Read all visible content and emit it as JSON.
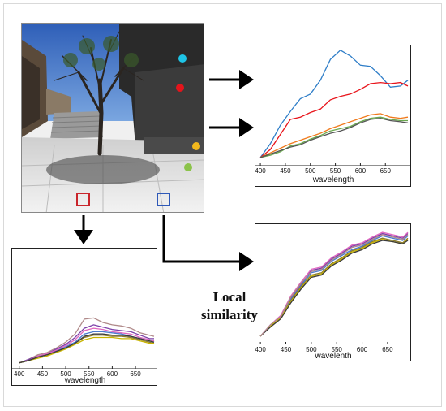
{
  "caption": {
    "line1": "Local",
    "line2": "similarity"
  },
  "colors": {
    "blue": "#2f7ec8",
    "red": "#e8141b",
    "orange": "#f07a1c",
    "green": "#6aa84f",
    "gray": "#555555",
    "marker_cyan": "#1ec4e6",
    "marker_red": "#e5141b",
    "marker_yellow": "#f2b81d",
    "marker_green": "#8bc34a",
    "square_red": "#c9252b",
    "square_blue": "#2f59b8"
  },
  "photo": {
    "markers": [
      "cyan-dot",
      "red-dot",
      "yellow-dot",
      "green-dot"
    ],
    "squares": [
      "red-square",
      "blue-square"
    ]
  },
  "chart_data": [
    {
      "id": "top-right",
      "type": "line",
      "xlabel": "wavelength",
      "ticks": [
        "400",
        "450",
        "500",
        "550",
        "600",
        "650"
      ],
      "xlim": [
        395,
        695
      ],
      "ylim": [
        0,
        1
      ],
      "x": [
        400,
        420,
        440,
        460,
        480,
        500,
        520,
        540,
        560,
        580,
        600,
        620,
        640,
        660,
        680,
        695
      ],
      "series": [
        {
          "color": "blue",
          "values": [
            0.05,
            0.17,
            0.33,
            0.45,
            0.56,
            0.6,
            0.72,
            0.9,
            0.98,
            0.93,
            0.85,
            0.84,
            0.76,
            0.66,
            0.67,
            0.72
          ]
        },
        {
          "color": "red",
          "values": [
            0.05,
            0.12,
            0.25,
            0.38,
            0.4,
            0.44,
            0.47,
            0.55,
            0.58,
            0.6,
            0.64,
            0.69,
            0.7,
            0.69,
            0.7,
            0.67
          ]
        },
        {
          "color": "orange",
          "values": [
            0.05,
            0.09,
            0.13,
            0.17,
            0.2,
            0.23,
            0.26,
            0.3,
            0.33,
            0.36,
            0.39,
            0.42,
            0.43,
            0.4,
            0.39,
            0.4
          ]
        },
        {
          "color": "green",
          "values": [
            0.05,
            0.07,
            0.1,
            0.15,
            0.17,
            0.21,
            0.24,
            0.28,
            0.3,
            0.32,
            0.36,
            0.39,
            0.4,
            0.38,
            0.37,
            0.37
          ]
        },
        {
          "color": "gray",
          "values": [
            0.05,
            0.08,
            0.11,
            0.14,
            0.16,
            0.2,
            0.23,
            0.26,
            0.28,
            0.31,
            0.35,
            0.38,
            0.39,
            0.37,
            0.36,
            0.35
          ]
        }
      ]
    },
    {
      "id": "bottom-left",
      "type": "line",
      "xlabel": "wavelength",
      "ticks": [
        "400",
        "450",
        "500",
        "550",
        "600",
        "650"
      ],
      "xlim": [
        390,
        690
      ],
      "ylim": [
        0,
        1
      ],
      "x": [
        400,
        420,
        440,
        460,
        480,
        500,
        520,
        540,
        560,
        580,
        600,
        620,
        640,
        660,
        680,
        690
      ],
      "series": [
        {
          "color": "#b08a8a",
          "values": [
            0.03,
            0.06,
            0.1,
            0.12,
            0.16,
            0.21,
            0.28,
            0.41,
            0.42,
            0.38,
            0.36,
            0.35,
            0.33,
            0.29,
            0.27,
            0.26
          ]
        },
        {
          "color": "#7b3fa8",
          "values": [
            0.03,
            0.06,
            0.09,
            0.11,
            0.15,
            0.19,
            0.25,
            0.33,
            0.36,
            0.34,
            0.32,
            0.31,
            0.3,
            0.27,
            0.24,
            0.24
          ]
        },
        {
          "color": "#e066c0",
          "values": [
            0.03,
            0.05,
            0.09,
            0.11,
            0.14,
            0.18,
            0.23,
            0.31,
            0.33,
            0.32,
            0.3,
            0.29,
            0.28,
            0.25,
            0.23,
            0.22
          ]
        },
        {
          "color": "#4a7bd0",
          "values": [
            0.03,
            0.05,
            0.08,
            0.1,
            0.13,
            0.17,
            0.21,
            0.28,
            0.3,
            0.3,
            0.29,
            0.28,
            0.26,
            0.24,
            0.22,
            0.21
          ]
        },
        {
          "color": "#8b7b2a",
          "values": [
            0.03,
            0.05,
            0.08,
            0.1,
            0.12,
            0.16,
            0.2,
            0.25,
            0.27,
            0.27,
            0.26,
            0.26,
            0.25,
            0.23,
            0.21,
            0.2
          ]
        },
        {
          "color": "#c8b400",
          "values": [
            0.03,
            0.05,
            0.07,
            0.09,
            0.12,
            0.15,
            0.19,
            0.23,
            0.25,
            0.25,
            0.25,
            0.24,
            0.24,
            0.22,
            0.2,
            0.2
          ]
        },
        {
          "color": "#3a3a3a",
          "values": [
            0.03,
            0.05,
            0.08,
            0.1,
            0.13,
            0.16,
            0.2,
            0.26,
            0.28,
            0.28,
            0.27,
            0.27,
            0.26,
            0.24,
            0.22,
            0.21
          ]
        }
      ]
    },
    {
      "id": "bottom-right",
      "type": "line",
      "xlabel": "wavelenth",
      "ticks": [
        "400",
        "450",
        "500",
        "550",
        "600",
        "650"
      ],
      "xlim": [
        395,
        690
      ],
      "ylim": [
        0,
        1
      ],
      "x": [
        400,
        420,
        440,
        460,
        480,
        500,
        520,
        540,
        560,
        580,
        600,
        620,
        640,
        660,
        680,
        690
      ],
      "series": [
        {
          "color": "#7b3fa8",
          "values": [
            0.05,
            0.15,
            0.22,
            0.38,
            0.5,
            0.62,
            0.64,
            0.72,
            0.77,
            0.83,
            0.85,
            0.9,
            0.94,
            0.92,
            0.9,
            0.94
          ]
        },
        {
          "color": "#e066c0",
          "values": [
            0.05,
            0.15,
            0.23,
            0.4,
            0.52,
            0.63,
            0.65,
            0.73,
            0.78,
            0.84,
            0.86,
            0.91,
            0.95,
            0.93,
            0.91,
            0.95
          ]
        },
        {
          "color": "#4a7bd0",
          "values": [
            0.05,
            0.14,
            0.22,
            0.37,
            0.49,
            0.6,
            0.62,
            0.7,
            0.75,
            0.8,
            0.83,
            0.88,
            0.92,
            0.9,
            0.88,
            0.92
          ]
        },
        {
          "color": "#8b7b2a",
          "values": [
            0.05,
            0.14,
            0.21,
            0.36,
            0.48,
            0.58,
            0.6,
            0.68,
            0.73,
            0.79,
            0.82,
            0.87,
            0.9,
            0.88,
            0.86,
            0.9
          ]
        },
        {
          "color": "#c8b400",
          "values": [
            0.05,
            0.14,
            0.21,
            0.35,
            0.47,
            0.57,
            0.59,
            0.67,
            0.72,
            0.78,
            0.81,
            0.86,
            0.89,
            0.87,
            0.85,
            0.89
          ]
        },
        {
          "color": "#3a3a3a",
          "values": [
            0.05,
            0.13,
            0.2,
            0.34,
            0.46,
            0.56,
            0.58,
            0.66,
            0.71,
            0.77,
            0.8,
            0.85,
            0.88,
            0.87,
            0.85,
            0.88
          ]
        },
        {
          "color": "#b08a8a",
          "values": [
            0.05,
            0.15,
            0.22,
            0.39,
            0.51,
            0.61,
            0.63,
            0.71,
            0.76,
            0.82,
            0.84,
            0.89,
            0.93,
            0.91,
            0.89,
            0.93
          ]
        }
      ]
    }
  ]
}
